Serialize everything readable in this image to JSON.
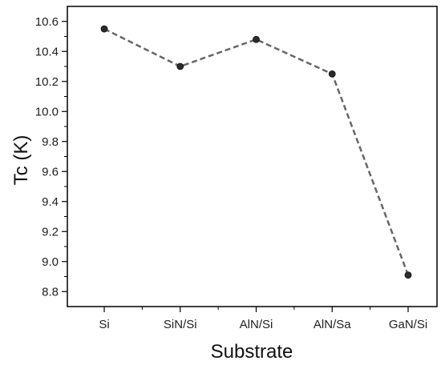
{
  "chart_data": {
    "type": "line",
    "categories": [
      "Si",
      "SiN/Si",
      "AlN/Si",
      "AlN/Sa",
      "GaN/Si"
    ],
    "values": [
      10.55,
      10.3,
      10.48,
      10.25,
      8.91
    ],
    "xlabel": "Substrate",
    "ylabel": "Tc (K)",
    "ylim": [
      8.7,
      10.7
    ],
    "yticks": [
      8.8,
      9.0,
      9.2,
      9.4,
      9.6,
      9.8,
      10.0,
      10.2,
      10.4,
      10.6
    ],
    "grid": false,
    "line_style": "dashed",
    "colors": {
      "line": "#666666",
      "marker": "#2b2b2b",
      "axis": "#000000"
    }
  }
}
